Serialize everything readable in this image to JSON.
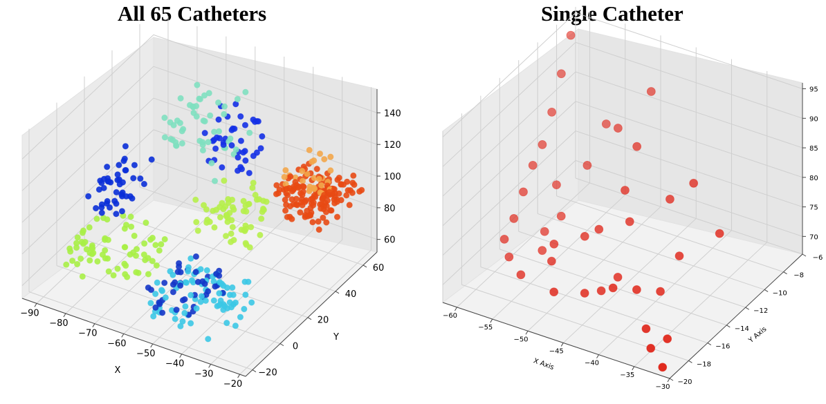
{
  "chart_data": [
    {
      "type": "scatter",
      "projection": "3d",
      "title": "All 65 Catheters",
      "xlabel": "X",
      "ylabel": "Y",
      "zlabel": "",
      "xticks": [
        -90,
        -80,
        -70,
        -60,
        -50,
        -40,
        -30,
        -20
      ],
      "yticks": [
        -20,
        0,
        20,
        40,
        60
      ],
      "zticks": [
        60,
        80,
        100,
        120,
        140
      ],
      "xlim": [
        -95,
        -18
      ],
      "ylim": [
        -25,
        70
      ],
      "zlim": [
        52,
        155
      ],
      "grid": true,
      "colormap": "jet",
      "series": [
        {
          "color": "#0a2fd8",
          "x_range": [
            -90,
            -80
          ],
          "y_range": [
            10,
            40
          ],
          "z_range": [
            80,
            100
          ],
          "count": 45
        },
        {
          "color": "#a8f046",
          "x_range": [
            -90,
            -65
          ],
          "y_range": [
            -10,
            20
          ],
          "z_range": [
            60,
            80
          ],
          "count": 70
        },
        {
          "color": "#7fe0c0",
          "x_range": [
            -75,
            -55
          ],
          "y_range": [
            30,
            60
          ],
          "z_range": [
            105,
            145
          ],
          "count": 50
        },
        {
          "color": "#1430e6",
          "x_range": [
            -65,
            -50
          ],
          "y_range": [
            40,
            60
          ],
          "z_range": [
            100,
            130
          ],
          "count": 40
        },
        {
          "color": "#b6f04a",
          "x_range": [
            -60,
            -40
          ],
          "y_range": [
            20,
            50
          ],
          "z_range": [
            75,
            95
          ],
          "count": 60
        },
        {
          "color": "#3cc8e6",
          "x_range": [
            -55,
            -30
          ],
          "y_range": [
            -20,
            10
          ],
          "z_range": [
            60,
            80
          ],
          "count": 80
        },
        {
          "color": "#1436c8",
          "x_range": [
            -55,
            -40
          ],
          "y_range": [
            -20,
            10
          ],
          "z_range": [
            65,
            80
          ],
          "count": 40
        },
        {
          "color": "#e84a14",
          "x_range": [
            -40,
            -20
          ],
          "y_range": [
            40,
            65
          ],
          "z_range": [
            85,
            105
          ],
          "count": 140
        },
        {
          "color": "#f3a64a",
          "x_range": [
            -40,
            -25
          ],
          "y_range": [
            45,
            65
          ],
          "z_range": [
            95,
            110
          ],
          "count": 30
        }
      ]
    },
    {
      "type": "scatter",
      "projection": "3d",
      "title": "Single Catheter",
      "xlabel": "X Axis",
      "ylabel": "Y Axis",
      "zlabel": "",
      "xticks": [
        -60,
        -55,
        -50,
        -45,
        -40,
        -35,
        -30
      ],
      "yticks": [
        -20,
        -18,
        -16,
        -14,
        -12,
        -10,
        -8,
        -6
      ],
      "zticks": [
        70,
        75,
        80,
        85,
        90,
        95
      ],
      "xlim": [
        -62,
        -30
      ],
      "ylim": [
        -20,
        -6
      ],
      "zlim": [
        67,
        96
      ],
      "grid": true,
      "color": "#e0281c",
      "points": [
        [
          -60,
          -8,
          95
        ],
        [
          -60,
          -9,
          90
        ],
        [
          -60,
          -10,
          85
        ],
        [
          -60,
          -11,
          81
        ],
        [
          -60,
          -12,
          79
        ],
        [
          -60,
          -13,
          76
        ],
        [
          -60,
          -14,
          73
        ],
        [
          -60,
          -15,
          71
        ],
        [
          -57,
          -13,
          70.5
        ],
        [
          -56,
          -12,
          72
        ],
        [
          -58,
          -11,
          75
        ],
        [
          -55,
          -10,
          78
        ],
        [
          -55,
          -8,
          82
        ],
        [
          -52,
          -9,
          84
        ],
        [
          -50,
          -7,
          88
        ],
        [
          -48,
          -10,
          84
        ],
        [
          -47,
          -12,
          80
        ],
        [
          -48,
          -14,
          76
        ],
        [
          -53,
          -15,
          73
        ],
        [
          -55,
          -17,
          70
        ],
        [
          -52,
          -16,
          72
        ],
        [
          -50,
          -14,
          74
        ],
        [
          -45,
          -13,
          77
        ],
        [
          -42,
          -11,
          79
        ],
        [
          -40,
          -10,
          81
        ],
        [
          -44,
          -15,
          71
        ],
        [
          -46,
          -17,
          70.5
        ],
        [
          -49,
          -18,
          71
        ],
        [
          -42,
          -17,
          73
        ],
        [
          -40,
          -16,
          72
        ],
        [
          -38,
          -15,
          71
        ],
        [
          -36,
          -18,
          70
        ],
        [
          -34,
          -19,
          69
        ],
        [
          -31,
          -20,
          68.5
        ],
        [
          -33,
          -18,
          69.5
        ],
        [
          -38,
          -13,
          74
        ],
        [
          -35,
          -11,
          76
        ],
        [
          -45,
          -16,
          69.8
        ],
        [
          -56,
          -14,
          69.2
        ],
        [
          -58,
          -16,
          70.3
        ]
      ]
    }
  ]
}
